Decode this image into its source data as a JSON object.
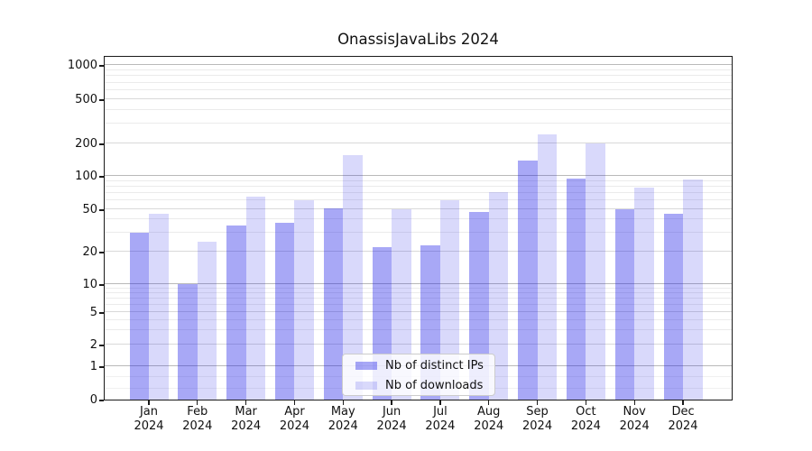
{
  "title": "OnassisJavaLibs 2024",
  "legend": {
    "items": [
      {
        "label": "Nb of distinct IPs",
        "series": "ips"
      },
      {
        "label": "Nb of downloads",
        "series": "downloads"
      }
    ]
  },
  "colors": {
    "ips_bar": "rgba(20,20,230,0.37)",
    "downloads_bar": "rgba(20,20,230,0.16)",
    "ips_bar_hex": "#a9a9f4",
    "downloads_bar_hex": "#dcdcf9",
    "major_gridline": "#b9b9b9",
    "labeled_gridline": "#d9d9d9",
    "minor_gridline": "#ebebeb",
    "sub_one_gridline": "#f0f0f0",
    "spine": "#1a1a1a",
    "text": "#111111",
    "legend_bg": "rgba(255,255,255,0.8)",
    "legend_border": "#cccccc"
  },
  "y_axis": {
    "tick_labels": [
      "0",
      "1",
      "2",
      "5",
      "10",
      "20",
      "50",
      "100",
      "200",
      "500",
      "1000"
    ]
  },
  "x_axis": {
    "months": [
      "Jan",
      "Feb",
      "Mar",
      "Apr",
      "May",
      "Jun",
      "Jul",
      "Aug",
      "Sep",
      "Oct",
      "Nov",
      "Dec"
    ],
    "year": "2024"
  },
  "chart_data": {
    "type": "bar",
    "title": "OnassisJavaLibs 2024",
    "xlabel": "",
    "ylabel": "",
    "categories": [
      "Jan 2024",
      "Feb 2024",
      "Mar 2024",
      "Apr 2024",
      "May 2024",
      "Jun 2024",
      "Jul 2024",
      "Aug 2024",
      "Sep 2024",
      "Oct 2024",
      "Nov 2024",
      "Dec 2024"
    ],
    "series": [
      {
        "name": "Nb of distinct IPs",
        "values": [
          30,
          10,
          35,
          37,
          51,
          22,
          23,
          47,
          140,
          95,
          50,
          45
        ]
      },
      {
        "name": "Nb of downloads",
        "values": [
          45,
          25,
          65,
          60,
          155,
          50,
          60,
          72,
          240,
          200,
          78,
          92
        ]
      }
    ],
    "yscale": "symlog",
    "ytick_values": [
      0,
      1,
      2,
      5,
      10,
      20,
      50,
      100,
      200,
      500,
      1000
    ],
    "ylim": [
      0,
      1200
    ],
    "grid": true,
    "legend_position": "lower center"
  }
}
